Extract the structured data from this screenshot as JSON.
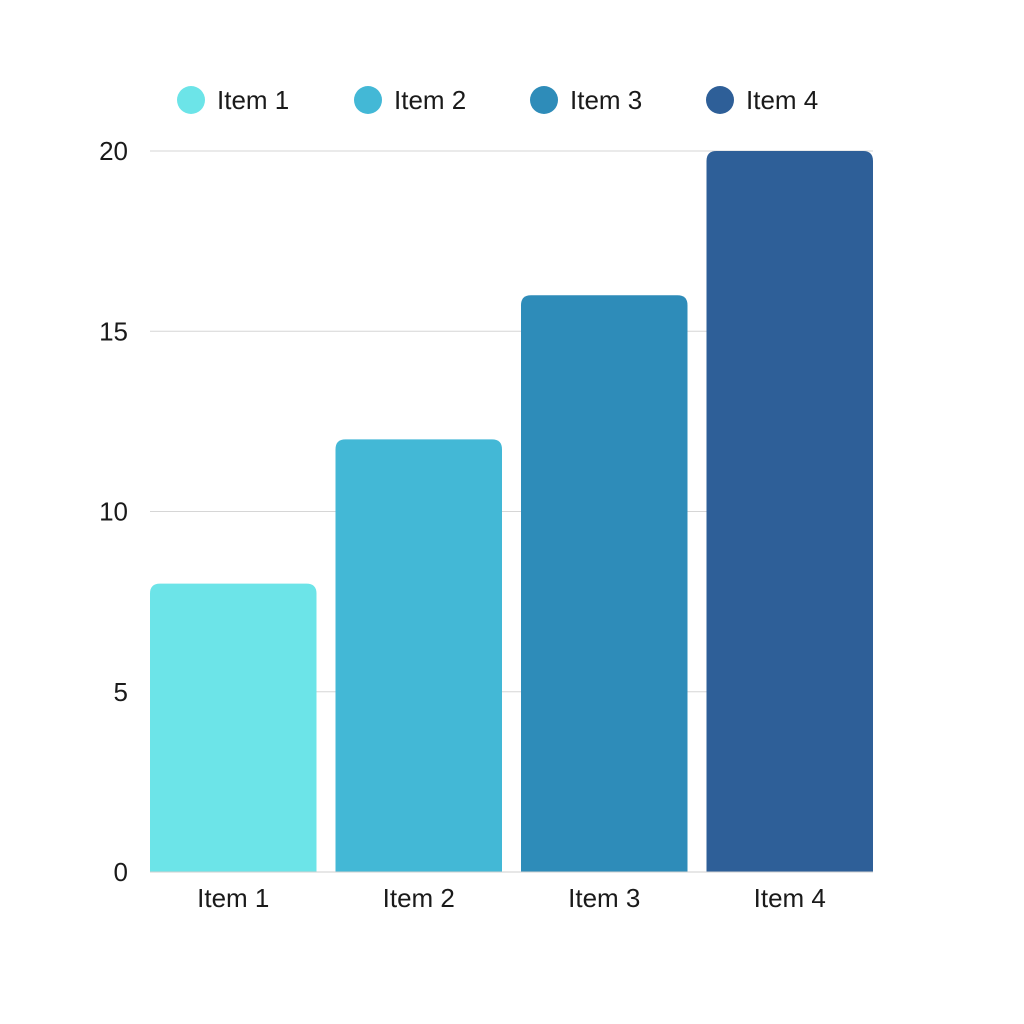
{
  "chart_data": {
    "type": "bar",
    "categories": [
      "Item 1",
      "Item 2",
      "Item 3",
      "Item 4"
    ],
    "values": [
      8,
      12,
      16,
      20
    ],
    "colors": [
      "#6ce4e8",
      "#43b8d6",
      "#2e8cb9",
      "#2e5f98"
    ],
    "legend": {
      "position": "top",
      "entries": [
        "Item 1",
        "Item 2",
        "Item 3",
        "Item 4"
      ]
    },
    "y_ticks": [
      0,
      5,
      10,
      15,
      20
    ],
    "ylim": [
      0,
      20
    ],
    "grid": true,
    "title": "",
    "xlabel": "",
    "ylabel": ""
  }
}
